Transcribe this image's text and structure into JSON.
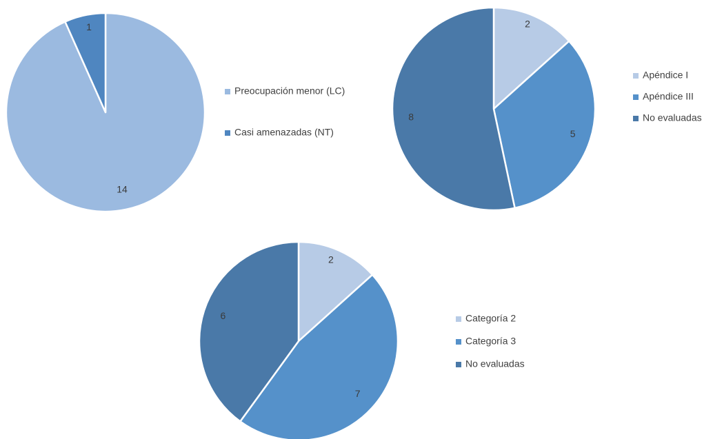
{
  "chart_data": [
    {
      "type": "pie",
      "slices": [
        {
          "label": "Preocupación menor (LC)",
          "value": 14,
          "color": "#9bbae0"
        },
        {
          "label": "Casi amenazadas (NT)",
          "value": 1,
          "color": "#4f86c0"
        }
      ],
      "legend_position": "right"
    },
    {
      "type": "pie",
      "slices": [
        {
          "label": "Apéndice I",
          "value": 2,
          "color": "#b7cbe6"
        },
        {
          "label": "Apéndice III",
          "value": 5,
          "color": "#5591ca"
        },
        {
          "label": "No evaluadas",
          "value": 8,
          "color": "#4a79a8"
        }
      ],
      "legend_position": "right"
    },
    {
      "type": "pie",
      "slices": [
        {
          "label": "Categoría 2",
          "value": 2,
          "color": "#b7cbe6"
        },
        {
          "label": "Categoría 3",
          "value": 7,
          "color": "#5591ca"
        },
        {
          "label": "No evaluadas",
          "value": 6,
          "color": "#4a79a8"
        }
      ],
      "legend_position": "right"
    }
  ]
}
